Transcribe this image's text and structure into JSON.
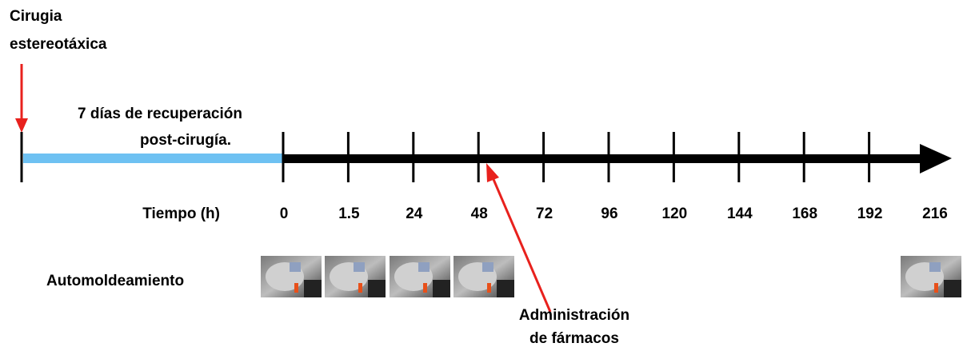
{
  "surgery": [
    "Cirugia",
    "estereotáxica"
  ],
  "recovery": [
    "7 días de recuperación",
    "post-cirugía."
  ],
  "time_axis": "Tiempo (h)",
  "ticks": [
    "0",
    "1.5",
    "24",
    "48",
    "72",
    "96",
    "120",
    "144",
    "168",
    "192",
    "216"
  ],
  "session": "Automoldeamiento",
  "drugs": [
    "Administración",
    "de fármacos"
  ]
}
